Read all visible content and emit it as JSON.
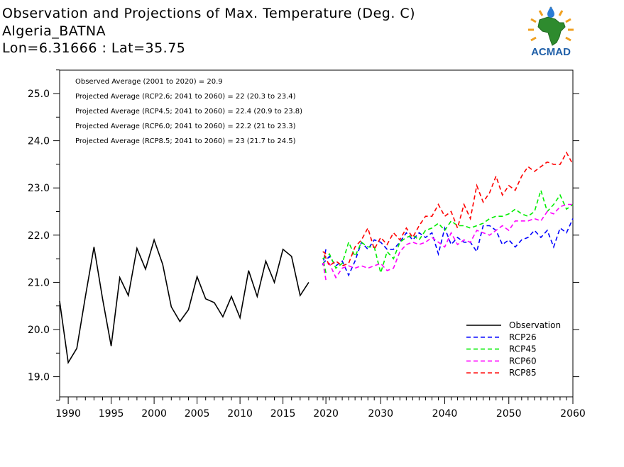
{
  "header": {
    "line1": "Observation and Projections of Max. Temperature (Deg. C)",
    "line2": "Algeria_BATNA",
    "line3": "Lon=6.31666 : Lat=35.75"
  },
  "logo": {
    "text": "ACMAD"
  },
  "notes": [
    "Observed Average (2001 to 2020) = 20.9",
    "Projected Average (RCP2.6; 2041 to 2060) = 22 (20.3 to 23.4)",
    "Projected Average (RCP4.5; 2041 to 2060) = 22.4 (20.9 to 23.8)",
    "Projected Average (RCP6.0; 2041 to 2060) = 22.2 (21 to 23.3)",
    "Projected Average (RCP8.5; 2041 to 2060) = 23 (21.7 to 24.5)"
  ],
  "chart_data": {
    "type": "line",
    "title": "Observation and Projections of Max. Temperature (Deg. C)",
    "xlabel": "",
    "ylabel": "",
    "ylim": [
      18.5,
      25.5
    ],
    "grid": false,
    "legend_position": "bottom-right",
    "x_tick_labels": [
      "1990",
      "1995",
      "2000",
      "2005",
      "2010",
      "2015",
      "2020",
      "2030",
      "2040",
      "2050",
      "2060"
    ],
    "x_tick_values": [
      1990,
      1995,
      2000,
      2005,
      2010,
      2015,
      2020,
      2030,
      2040,
      2050,
      2060
    ],
    "y_tick_labels": [
      "19.0",
      "20.0",
      "21.0",
      "22.0",
      "23.0",
      "24.0",
      "25.0"
    ],
    "y_tick_values": [
      19,
      20,
      21,
      22,
      23,
      24,
      25
    ],
    "series": [
      {
        "name": "Observation",
        "color": "#000000",
        "dashed": false,
        "x": [
          1989,
          1990,
          1991,
          1992,
          1993,
          1994,
          1995,
          1996,
          1997,
          1998,
          1999,
          2000,
          2001,
          2002,
          2003,
          2004,
          2005,
          2006,
          2007,
          2008,
          2009,
          2010,
          2011,
          2012,
          2013,
          2014,
          2015,
          2016,
          2017,
          2018,
          2019
        ],
        "values": [
          20.6,
          19.3,
          19.6,
          20.7,
          21.75,
          20.65,
          19.65,
          21.1,
          20.72,
          21.72,
          21.28,
          21.9,
          21.38,
          20.48,
          20.17,
          20.42,
          21.12,
          20.65,
          20.57,
          20.27,
          20.7,
          20.25,
          21.25,
          20.7,
          21.45,
          21.0,
          21.7,
          21.55,
          20.72,
          21.0,
          null
        ]
      },
      {
        "name": "RCP26",
        "color": "#0000ff",
        "dashed": true,
        "x": [
          2020,
          2021,
          2022,
          2023,
          2024,
          2025,
          2026,
          2027,
          2028,
          2029,
          2030,
          2031,
          2032,
          2033,
          2034,
          2035,
          2036,
          2037,
          2038,
          2039,
          2040,
          2041,
          2042,
          2043,
          2044,
          2045,
          2046,
          2047,
          2048,
          2049,
          2050,
          2051,
          2052,
          2053,
          2054,
          2055,
          2056,
          2057,
          2058,
          2059,
          2060
        ],
        "values": [
          21.7,
          21.4,
          21.55,
          21.35,
          21.45,
          21.15,
          21.45,
          21.85,
          21.7,
          21.9,
          21.85,
          21.7,
          21.7,
          21.85,
          22.05,
          21.9,
          22.05,
          21.95,
          22.05,
          21.6,
          22.15,
          21.8,
          21.95,
          21.85,
          21.85,
          21.65,
          22.2,
          22.2,
          22.1,
          21.8,
          21.9,
          21.75,
          21.9,
          21.95,
          22.1,
          21.95,
          22.1,
          21.75,
          22.15,
          22.05,
          22.35
        ]
      },
      {
        "name": "RCP45",
        "color": "#00ee00",
        "dashed": true,
        "x": [
          2020,
          2021,
          2022,
          2023,
          2024,
          2025,
          2026,
          2027,
          2028,
          2029,
          2030,
          2031,
          2032,
          2033,
          2034,
          2035,
          2036,
          2037,
          2038,
          2039,
          2040,
          2041,
          2042,
          2043,
          2044,
          2045,
          2046,
          2047,
          2048,
          2049,
          2050,
          2051,
          2052,
          2053,
          2054,
          2055,
          2056,
          2057,
          2058,
          2059,
          2060
        ],
        "values": [
          21.2,
          21.5,
          21.6,
          21.3,
          21.4,
          21.85,
          21.55,
          21.85,
          21.75,
          21.75,
          21.2,
          21.65,
          21.5,
          21.85,
          21.95,
          22.0,
          21.9,
          22.1,
          22.15,
          22.25,
          22.1,
          22.3,
          22.2,
          22.2,
          22.15,
          22.2,
          22.25,
          22.35,
          22.4,
          22.4,
          22.45,
          22.55,
          22.45,
          22.4,
          22.5,
          22.95,
          22.5,
          22.65,
          22.85,
          22.55,
          22.65
        ]
      },
      {
        "name": "RCP60",
        "color": "#ff00ff",
        "dashed": true,
        "x": [
          2020,
          2021,
          2022,
          2023,
          2024,
          2025,
          2026,
          2027,
          2028,
          2029,
          2030,
          2031,
          2032,
          2033,
          2034,
          2035,
          2036,
          2037,
          2038,
          2039,
          2040,
          2041,
          2042,
          2043,
          2044,
          2045,
          2046,
          2047,
          2048,
          2049,
          2050,
          2051,
          2052,
          2053,
          2054,
          2055,
          2056,
          2057,
          2058,
          2059,
          2060
        ],
        "values": [
          21.05,
          21.4,
          21.4,
          21.1,
          21.3,
          21.35,
          21.3,
          21.35,
          21.3,
          21.35,
          21.4,
          21.25,
          21.3,
          21.65,
          21.8,
          21.85,
          21.8,
          21.85,
          21.95,
          21.85,
          21.75,
          22.05,
          21.8,
          21.9,
          21.85,
          22.1,
          22.05,
          22.0,
          22.1,
          22.2,
          22.1,
          22.3,
          22.3,
          22.3,
          22.35,
          22.3,
          22.5,
          22.45,
          22.6,
          22.65,
          22.65
        ]
      },
      {
        "name": "RCP85",
        "color": "#ff0000",
        "dashed": true,
        "x": [
          2020,
          2021,
          2022,
          2023,
          2024,
          2025,
          2026,
          2027,
          2028,
          2029,
          2030,
          2031,
          2032,
          2033,
          2034,
          2035,
          2036,
          2037,
          2038,
          2039,
          2040,
          2041,
          2042,
          2043,
          2044,
          2045,
          2046,
          2047,
          2048,
          2049,
          2050,
          2051,
          2052,
          2053,
          2054,
          2055,
          2056,
          2057,
          2058,
          2059,
          2060
        ],
        "values": [
          21.6,
          21.65,
          21.35,
          21.45,
          21.35,
          21.4,
          21.75,
          21.9,
          22.15,
          21.7,
          21.95,
          21.8,
          22.05,
          21.9,
          22.15,
          21.95,
          22.2,
          22.4,
          22.4,
          22.65,
          22.4,
          22.5,
          22.15,
          22.65,
          22.35,
          23.05,
          22.7,
          22.9,
          23.25,
          22.85,
          23.05,
          22.95,
          23.25,
          23.45,
          23.35,
          23.45,
          23.55,
          23.5,
          23.5,
          23.75,
          23.5
        ]
      }
    ]
  }
}
